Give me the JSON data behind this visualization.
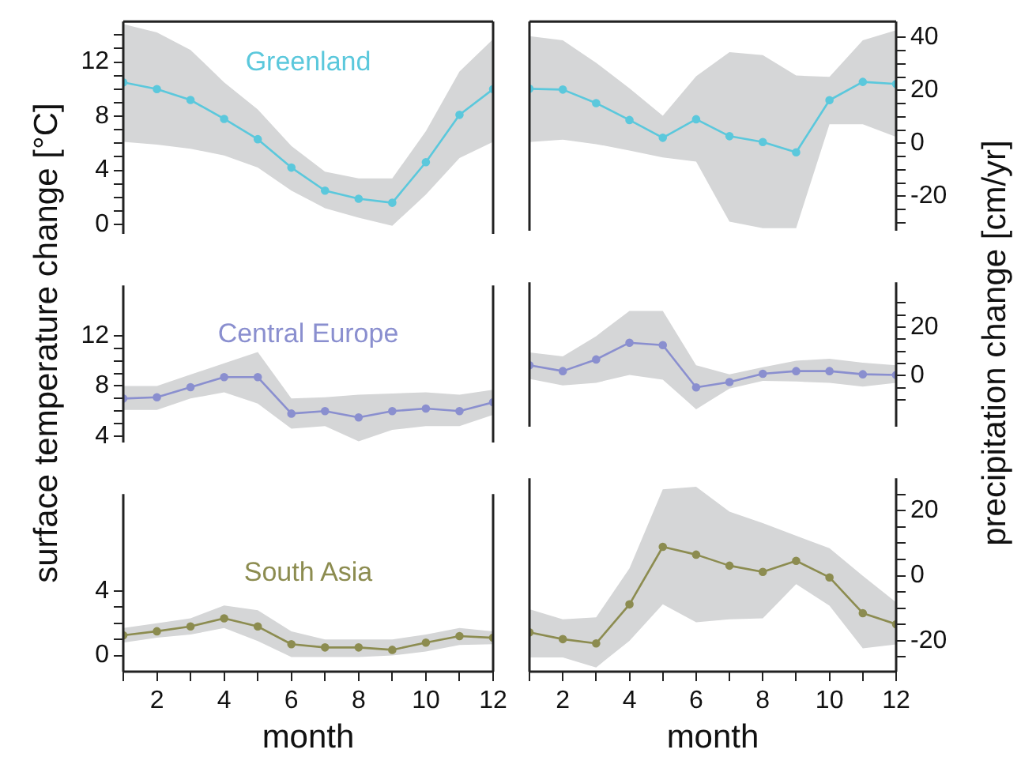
{
  "chart_data": [
    {
      "type": "line",
      "title": "Greenland",
      "xlim": [
        1,
        12
      ],
      "tick_labels": "y",
      "ylim": [
        -0.7,
        15
      ],
      "yticks": [
        0,
        {
          "value": 1,
          "label": null
        },
        {
          "value": 2,
          "label": null
        },
        {
          "value": 3,
          "label": null
        },
        4,
        {
          "value": 5,
          "label": null
        },
        {
          "value": 6,
          "label": null
        },
        {
          "value": 7,
          "label": null
        },
        8,
        {
          "value": 9,
          "label": null
        },
        {
          "value": 10,
          "label": null
        },
        {
          "value": 11,
          "label": null
        },
        12,
        {
          "value": 13,
          "label": null
        },
        {
          "value": 14,
          "label": null
        }
      ],
      "marker": "circle",
      "legend": false,
      "series": [
        {
          "color": "#5bc8dc",
          "x": [
            1,
            2,
            3,
            4,
            5,
            6,
            7,
            8,
            9,
            10,
            11,
            12
          ],
          "values": [
            10.5,
            10.0,
            9.2,
            7.8,
            6.3,
            4.2,
            2.5,
            1.9,
            1.6,
            4.6,
            8.1,
            10.0
          ],
          "upper": [
            14.8,
            14.2,
            12.9,
            10.5,
            8.5,
            5.8,
            3.9,
            3.4,
            3.4,
            6.9,
            11.3,
            13.7
          ],
          "lower": [
            6.1,
            5.9,
            5.6,
            5.1,
            4.2,
            2.5,
            1.2,
            0.5,
            -0.1,
            2.2,
            4.9,
            6.1
          ]
        }
      ]
    },
    {
      "type": "line",
      "xlim": [
        1,
        12
      ],
      "tick_labels": "y",
      "ylim": [
        -33,
        46
      ],
      "yticks": [
        {
          "value": -30,
          "label": null
        },
        {
          "value": -25,
          "label": null
        },
        -20,
        {
          "value": -15,
          "label": null
        },
        {
          "value": -10,
          "label": null
        },
        {
          "value": -5,
          "label": null
        },
        0,
        {
          "value": 5,
          "label": null
        },
        {
          "value": 10,
          "label": null
        },
        {
          "value": 15,
          "label": null
        },
        20,
        {
          "value": 25,
          "label": null
        },
        {
          "value": 30,
          "label": null
        },
        {
          "value": 35,
          "label": null
        },
        40
      ],
      "marker": "circle",
      "legend": false,
      "series": [
        {
          "color": "#5bc8dc",
          "x": [
            1,
            2,
            3,
            4,
            5,
            6,
            7,
            8,
            9,
            10,
            11,
            12
          ],
          "values": [
            20.6,
            20.3,
            15.2,
            8.8,
            2.1,
            9.1,
            2.7,
            0.5,
            -3.4,
            16.3,
            23.2,
            22.4
          ],
          "upper": [
            40.5,
            38.9,
            30.4,
            20.8,
            10.4,
            25.3,
            34.4,
            33.3,
            25.6,
            25.1,
            38.9,
            42.7
          ],
          "lower": [
            0.5,
            1.4,
            -0.3,
            -2.7,
            -5.3,
            -6.9,
            -29.6,
            -32,
            -32,
            7.2,
            7.2,
            2.4
          ]
        }
      ]
    },
    {
      "type": "line",
      "title": "Central Europe",
      "ylabel": "surface temperature change [°C]",
      "xlim": [
        1,
        12
      ],
      "tick_labels": "y",
      "ylim": [
        3.5,
        16
      ],
      "yticks": [
        4,
        {
          "value": 5,
          "label": null
        },
        {
          "value": 6,
          "label": null
        },
        {
          "value": 7,
          "label": null
        },
        8,
        {
          "value": 9,
          "label": null
        },
        {
          "value": 10,
          "label": null
        },
        {
          "value": 11,
          "label": null
        },
        12
      ],
      "marker": "circle",
      "legend": false,
      "series": [
        {
          "color": "#8a8fcf",
          "x": [
            1,
            2,
            3,
            4,
            5,
            6,
            7,
            8,
            9,
            10,
            11,
            12
          ],
          "values": [
            7.0,
            7.1,
            7.9,
            8.7,
            8.7,
            5.8,
            6.0,
            5.5,
            6.0,
            6.2,
            6.0,
            6.7
          ],
          "upper": [
            8.0,
            8.0,
            8.9,
            9.8,
            10.7,
            7.0,
            7.1,
            7.3,
            7.4,
            7.5,
            7.3,
            7.7
          ],
          "lower": [
            6.1,
            6.1,
            7.0,
            7.5,
            6.6,
            4.6,
            4.8,
            3.6,
            4.5,
            4.8,
            4.8,
            5.7
          ]
        }
      ]
    },
    {
      "type": "line",
      "ylabel": "precipitation change [cm/yr]",
      "xlim": [
        1,
        12
      ],
      "tick_labels": "y",
      "ylim": [
        -21,
        38.5
      ],
      "yticks": [
        {
          "value": -10,
          "label": null
        },
        {
          "value": -5,
          "label": null
        },
        0,
        {
          "value": 5,
          "label": null
        },
        {
          "value": 10,
          "label": null
        },
        {
          "value": 15,
          "label": null
        },
        20,
        {
          "value": 25,
          "label": null
        },
        {
          "value": 30,
          "label": null
        }
      ],
      "marker": "circle",
      "legend": false,
      "series": [
        {
          "color": "#8a8fcf",
          "x": [
            1,
            2,
            3,
            4,
            5,
            6,
            7,
            8,
            9,
            10,
            11,
            12
          ],
          "values": [
            4.3,
            1.9,
            6.7,
            13.6,
            12.6,
            -4.8,
            -2.6,
            0.8,
            1.9,
            1.9,
            0.6,
            0.3
          ],
          "upper": [
            9.6,
            8.0,
            16.3,
            26.7,
            26.7,
            4.3,
            0.6,
            3.5,
            6.2,
            7.0,
            5.4,
            4.3
          ],
          "lower": [
            -1.3,
            -4.0,
            -2.9,
            0.3,
            -1.6,
            -13.8,
            -5.3,
            -2.1,
            -2.4,
            -2.9,
            -4.5,
            -2.9
          ]
        }
      ]
    },
    {
      "type": "line",
      "title": "South Asia",
      "xlabel": "month",
      "xlim": [
        1,
        12
      ],
      "xticks": [
        {
          "value": 1,
          "label": null
        },
        2,
        {
          "value": 3,
          "label": null
        },
        4,
        {
          "value": 5,
          "label": null
        },
        6,
        {
          "value": 7,
          "label": null
        },
        8,
        {
          "value": 9,
          "label": null
        },
        10,
        {
          "value": 11,
          "label": null
        },
        12
      ],
      "ylim": [
        -1,
        10
      ],
      "yticks": [
        0,
        {
          "value": 1,
          "label": null
        },
        {
          "value": 2,
          "label": null
        },
        {
          "value": 3,
          "label": null
        },
        4
      ],
      "marker": "circle",
      "legend": false,
      "series": [
        {
          "color": "#8c8c50",
          "x": [
            1,
            2,
            3,
            4,
            5,
            6,
            7,
            8,
            9,
            10,
            11,
            12
          ],
          "values": [
            1.25,
            1.5,
            1.8,
            2.3,
            1.8,
            0.7,
            0.5,
            0.5,
            0.35,
            0.8,
            1.2,
            1.1
          ],
          "upper": [
            1.7,
            2.0,
            2.3,
            3.1,
            2.8,
            1.5,
            1.0,
            1.0,
            1.0,
            1.3,
            1.7,
            1.5
          ],
          "lower": [
            0.8,
            1.1,
            1.3,
            1.7,
            0.9,
            -0.1,
            -0.1,
            -0.1,
            0,
            0.25,
            0.65,
            0.7
          ]
        }
      ]
    },
    {
      "type": "line",
      "xlabel": "month",
      "xlim": [
        1,
        12
      ],
      "xticks": [
        {
          "value": 1,
          "label": null
        },
        2,
        {
          "value": 3,
          "label": null
        },
        4,
        {
          "value": 5,
          "label": null
        },
        6,
        {
          "value": 7,
          "label": null
        },
        8,
        {
          "value": 9,
          "label": null
        },
        10,
        {
          "value": 11,
          "label": null
        },
        12
      ],
      "ylim": [
        -29.5,
        30
      ],
      "yticks": [
        {
          "value": -25,
          "label": null
        },
        -20,
        {
          "value": -15,
          "label": null
        },
        {
          "value": -10,
          "label": null
        },
        {
          "value": -5,
          "label": null
        },
        0,
        {
          "value": 5,
          "label": null
        },
        {
          "value": 10,
          "label": null
        },
        {
          "value": 15,
          "label": null
        },
        20,
        {
          "value": 25,
          "label": null
        }
      ],
      "marker": "circle",
      "legend": false,
      "series": [
        {
          "color": "#8c8c50",
          "x": [
            1,
            2,
            3,
            4,
            5,
            6,
            7,
            8,
            9,
            10,
            11,
            12
          ],
          "values": [
            -17.4,
            -19.5,
            -20.8,
            -8.8,
            8.9,
            6.5,
            3.1,
            1.2,
            4.6,
            -0.5,
            -11.5,
            -14.9
          ],
          "upper": [
            -10.3,
            -13.4,
            -12.8,
            2.3,
            26.6,
            27.4,
            19.7,
            16.2,
            12.3,
            8.5,
            0,
            -8.2
          ],
          "lower": [
            -25.1,
            -25.1,
            -28.2,
            -20,
            -8.8,
            -14.3,
            -13.4,
            -13.1,
            -2.6,
            -9.2,
            -22.3,
            -21.1
          ]
        }
      ]
    }
  ]
}
